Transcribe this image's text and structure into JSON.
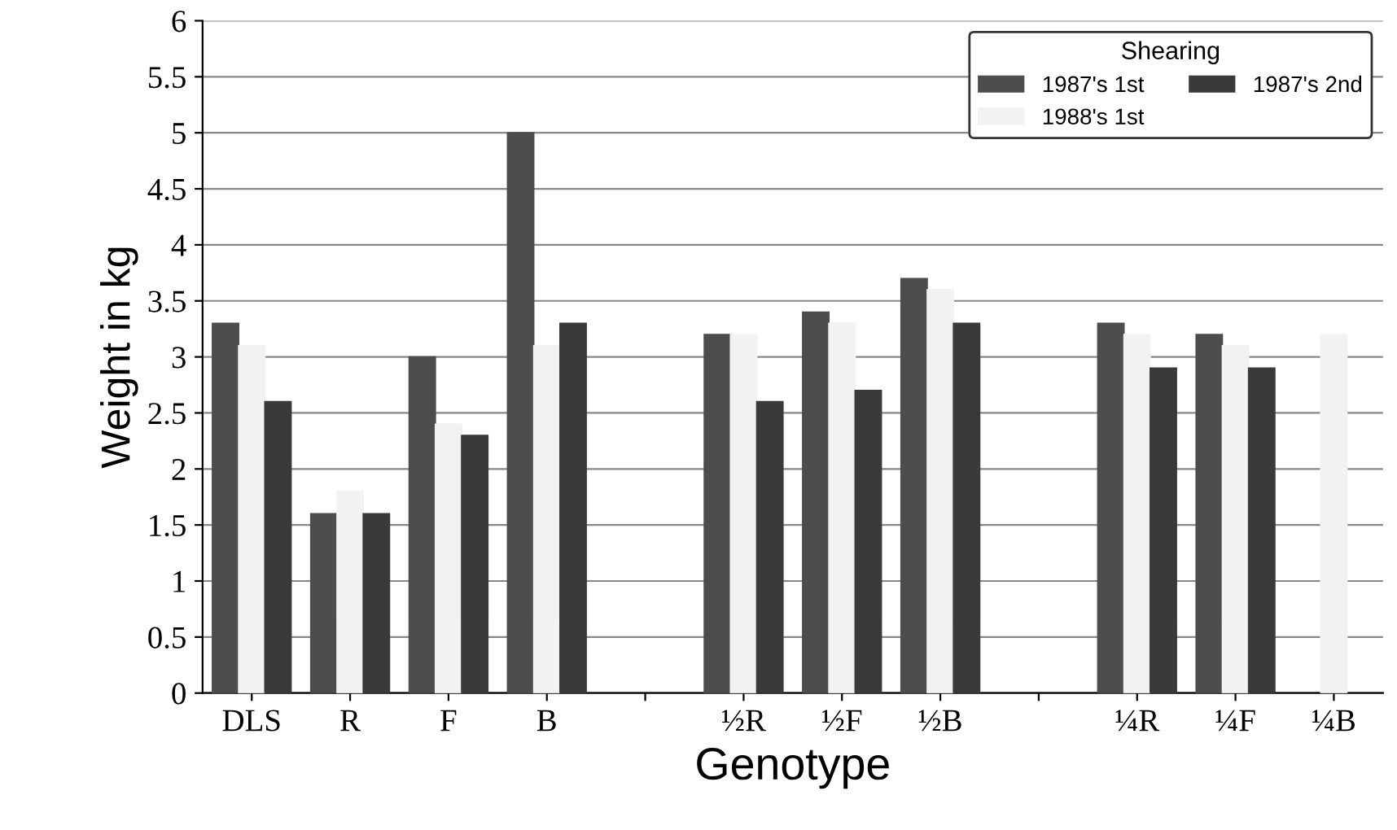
{
  "chart_data": {
    "type": "bar",
    "xlabel": "Genotype",
    "ylabel": "Weight in kg",
    "legend_title": "Shearing",
    "categories": [
      "DLS",
      "R",
      "F",
      "B",
      null,
      "½R",
      "½F",
      "½B",
      null,
      "¼R",
      "¼F",
      "¼B"
    ],
    "series": [
      {
        "name": "1987's 1st",
        "color": "#4d4d4d",
        "values": [
          3.3,
          1.6,
          3.0,
          5.0,
          null,
          3.2,
          3.4,
          3.7,
          null,
          3.3,
          3.2,
          null
        ]
      },
      {
        "name": "1988's 1st",
        "color": "#f2f2f2",
        "values": [
          3.1,
          1.8,
          2.4,
          3.1,
          null,
          3.2,
          3.3,
          3.6,
          null,
          3.2,
          3.1,
          3.2
        ]
      },
      {
        "name": "1987's 2nd",
        "color": "#3a3a3a",
        "values": [
          2.6,
          1.6,
          2.3,
          3.3,
          null,
          2.6,
          2.7,
          3.3,
          null,
          2.9,
          2.9,
          null
        ]
      }
    ],
    "ylim": [
      0,
      6
    ],
    "yticks": [
      0,
      0.5,
      1,
      1.5,
      2,
      2.5,
      3,
      3.5,
      4,
      4.5,
      5,
      5.5,
      6
    ],
    "grid": "y",
    "legend": "top right"
  }
}
